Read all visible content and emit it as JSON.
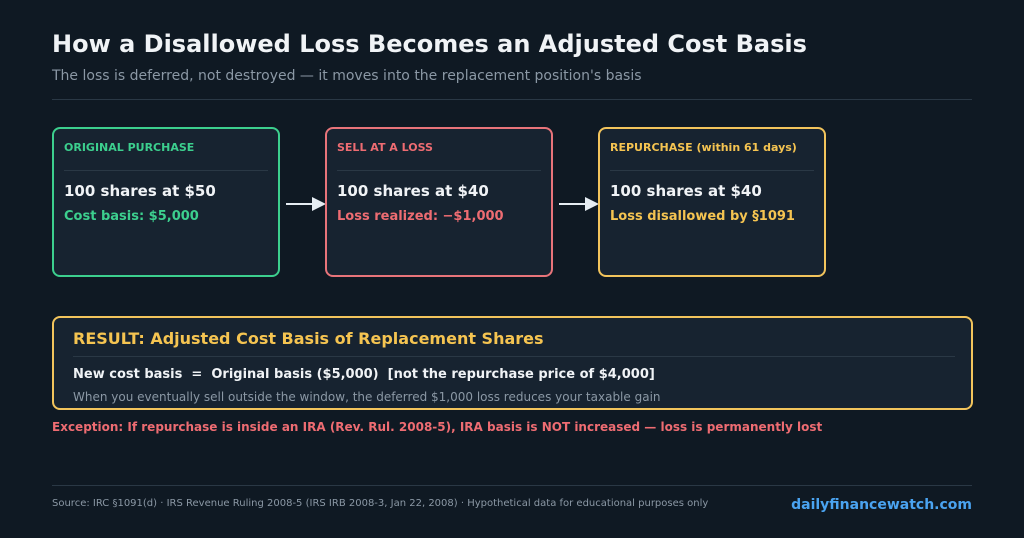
{
  "header": {
    "title": "How a Disallowed Loss Becomes an Adjusted Cost Basis",
    "subtitle": "The loss is deferred, not destroyed — it moves into the replacement position's basis"
  },
  "steps": [
    {
      "label": "ORIGINAL PURCHASE",
      "main": "100 shares at $50",
      "detail": "Cost basis: $5,000",
      "color": "#3ccf8e"
    },
    {
      "label": "SELL AT A LOSS",
      "main": "100 shares at $40",
      "detail": "Loss realized: −$1,000",
      "color": "#e8747a"
    },
    {
      "label": "REPURCHASE (within 61 days)",
      "main": "100 shares at $40",
      "detail": "Loss disallowed by §1091",
      "color": "#f2c45c"
    }
  ],
  "result": {
    "title": "RESULT: Adjusted Cost Basis of Replacement Shares",
    "formula": "New cost basis  =  Original basis ($5,000)  [not the repurchase price of $4,000]",
    "note": "When you eventually sell outside the window, the deferred $1,000 loss reduces your taxable gain",
    "color": "#f2c45c"
  },
  "exception": "Exception: If repurchase is inside an IRA (Rev. Rul. 2008-5), IRA basis is NOT increased — loss is permanently lost",
  "footer": {
    "source": "Source: IRC §1091(d) · IRS Revenue Ruling 2008-5 (IRS IRB 2008-3, Jan 22, 2008)  ·  Hypothetical data for educational purposes only",
    "brand": "dailyfinancewatch.com"
  },
  "colors": {
    "background": "#0f1923",
    "panel": "#172330",
    "arrow": "#e6edf3",
    "brand": "#4aa3f0",
    "exception": "#ee6c72"
  }
}
